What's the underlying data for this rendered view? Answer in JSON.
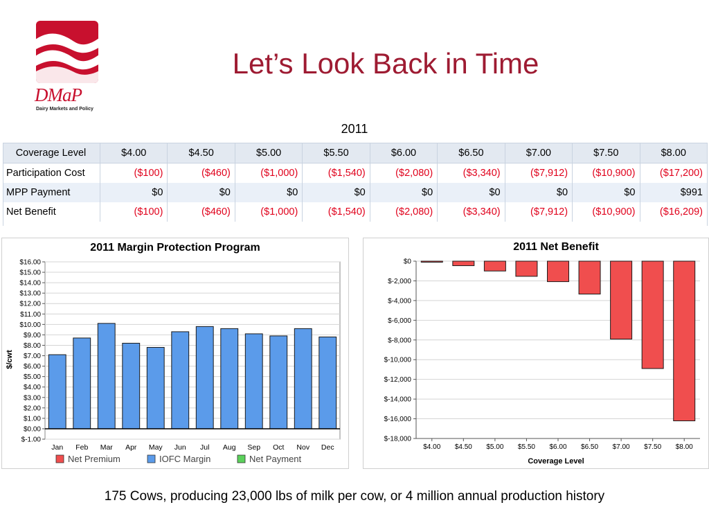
{
  "logo": {
    "brand": "DMaP",
    "subtitle": "Dairy Markets and Policy"
  },
  "title": "Let’s Look Back in Time",
  "year": "2011",
  "coverage_table": {
    "header_label": "Coverage Level",
    "levels": [
      "$4.00",
      "$4.50",
      "$5.00",
      "$5.50",
      "$6.00",
      "$6.50",
      "$7.00",
      "$7.50",
      "$8.00"
    ],
    "rows": [
      {
        "label": "Participation Cost",
        "values": [
          "($100)",
          "($460)",
          "($1,000)",
          "($1,540)",
          "($2,080)",
          "($3,340)",
          "($7,912)",
          "($10,900)",
          "($17,200)"
        ]
      },
      {
        "label": "MPP Payment",
        "values": [
          "$0",
          "$0",
          "$0",
          "$0",
          "$0",
          "$0",
          "$0",
          "$0",
          "$991"
        ]
      },
      {
        "label": "Net Benefit",
        "values": [
          "($100)",
          "($460)",
          "($1,000)",
          "($1,540)",
          "($2,080)",
          "($3,340)",
          "($7,912)",
          "($10,900)",
          "($16,209)"
        ]
      }
    ]
  },
  "chart_data": [
    {
      "type": "bar",
      "title": "2011 Margin Protection Program",
      "ylabel": "$/cwt",
      "xlabel": "",
      "categories": [
        "Jan",
        "Feb",
        "Mar",
        "Apr",
        "May",
        "Jun",
        "Jul",
        "Aug",
        "Sep",
        "Oct",
        "Nov",
        "Dec"
      ],
      "series": [
        {
          "name": "Net Premium",
          "color": "#f04e4e",
          "values": [
            0,
            0,
            0,
            0,
            0,
            0,
            0,
            0,
            0,
            0,
            0,
            0
          ]
        },
        {
          "name": "IOFC Margin",
          "color": "#5b9bea",
          "values": [
            7.1,
            8.7,
            10.1,
            8.2,
            7.8,
            9.3,
            9.8,
            9.6,
            9.1,
            8.9,
            9.6,
            8.8
          ]
        },
        {
          "name": "Net Payment",
          "color": "#5bd15b",
          "values": [
            0,
            0,
            0,
            0,
            0,
            0,
            0,
            0,
            0,
            0,
            0,
            0
          ]
        }
      ],
      "ylim": [
        -1,
        16
      ],
      "ytick_labels": [
        "$-1.00",
        "$0.00",
        "$1.00",
        "$2.00",
        "$3.00",
        "$4.00",
        "$5.00",
        "$6.00",
        "$7.00",
        "$8.00",
        "$9.00",
        "$10.00",
        "$11.00",
        "$12.00",
        "$13.00",
        "$14.00",
        "$15.00",
        "$16.00"
      ],
      "grid": true,
      "legend": "bottom"
    },
    {
      "type": "bar",
      "title": "2011 Net Benefit",
      "xlabel": "Coverage Level",
      "ylabel": "",
      "categories": [
        "$4.00",
        "$4.50",
        "$5.00",
        "$5.50",
        "$6.00",
        "$6.50",
        "$7.00",
        "$7.50",
        "$8.00"
      ],
      "values": [
        -100,
        -460,
        -1000,
        -1540,
        -2080,
        -3340,
        -7912,
        -10900,
        -16209
      ],
      "color": "#f04e4e",
      "ylim": [
        -18000,
        0
      ],
      "ytick_labels": [
        "$0",
        "$-2,000",
        "$-4,000",
        "$-6,000",
        "$-8,000",
        "$-10,000",
        "$-12,000",
        "$-14,000",
        "$-16,000",
        "$-18,000"
      ],
      "grid": true,
      "legend": "none"
    }
  ],
  "footer": "175 Cows, producing 23,000 lbs of milk per cow, or 4 million annual production history",
  "colors": {
    "brand_red": "#c8102e",
    "title_red": "#9e1b32",
    "negative_red": "#e0001b"
  }
}
